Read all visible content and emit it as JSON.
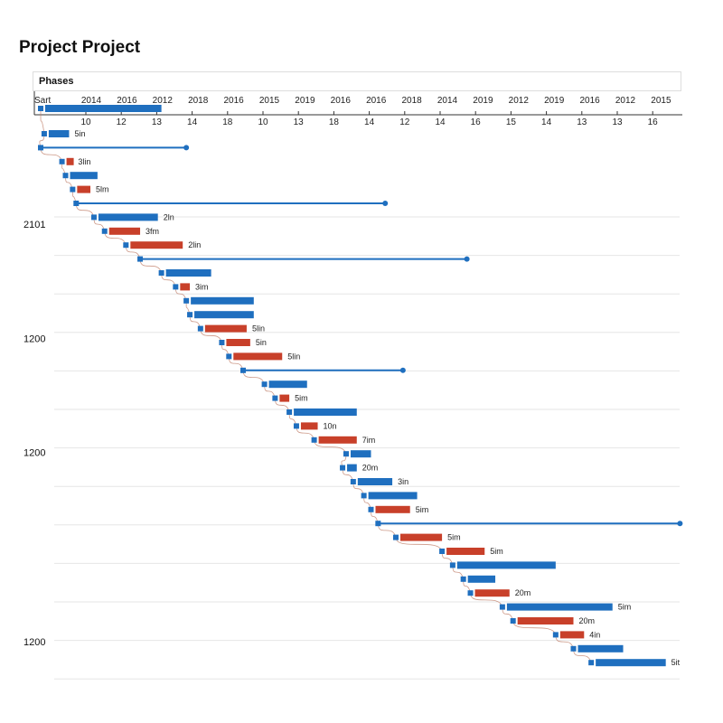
{
  "title": "Project Project",
  "header": {
    "phases_label": "Phases"
  },
  "colors": {
    "blue": "#1f6fbf",
    "red": "#c8402a",
    "connector": "#c0806a",
    "grid": "#e6e6e6"
  },
  "chart_data": {
    "type": "gantt",
    "title": "Project Project",
    "top_tick_labels": [
      "Sart",
      "2014",
      "2016",
      "2012",
      "2018",
      "2016",
      "2015",
      "2019",
      "2016",
      "2016",
      "2018",
      "2014",
      "2019",
      "2012",
      "2019",
      "2016",
      "2012",
      "2015"
    ],
    "bottom_tick_labels": [
      "10",
      "12",
      "13",
      "14",
      "18",
      "10",
      "13",
      "18",
      "14",
      "12",
      "14",
      "16",
      "15",
      "14",
      "13",
      "13",
      "16"
    ],
    "y_labels": [
      {
        "text": "2101",
        "row": 7.5
      },
      {
        "text": "1200",
        "row": 15.7
      },
      {
        "text": "1200",
        "row": 23.9
      },
      {
        "text": "1200",
        "row": 37.5
      }
    ],
    "grid": true,
    "tasks": [
      {
        "start": 0.0,
        "end": 3.4,
        "color": "blue",
        "kind": "bar",
        "label": ""
      },
      {
        "start": 0.1,
        "end": 0.8,
        "color": "blue",
        "kind": "bar",
        "label": "5in"
      },
      {
        "start": 0.0,
        "end": 4.1,
        "color": "blue",
        "kind": "line",
        "label": ""
      },
      {
        "start": 0.6,
        "end": 0.9,
        "color": "red",
        "kind": "bar",
        "label": "3lin"
      },
      {
        "start": 0.7,
        "end": 1.6,
        "color": "blue",
        "kind": "bar",
        "label": ""
      },
      {
        "start": 0.9,
        "end": 1.4,
        "color": "red",
        "kind": "bar",
        "label": "5lm"
      },
      {
        "start": 1.0,
        "end": 9.7,
        "color": "blue",
        "kind": "line",
        "label": ""
      },
      {
        "start": 1.5,
        "end": 3.3,
        "color": "blue",
        "kind": "bar",
        "label": "2ln"
      },
      {
        "start": 1.8,
        "end": 2.8,
        "color": "red",
        "kind": "bar",
        "label": "3fm"
      },
      {
        "start": 2.4,
        "end": 4.0,
        "color": "red",
        "kind": "bar",
        "label": "2lin"
      },
      {
        "start": 2.8,
        "end": 12.0,
        "color": "blue",
        "kind": "line",
        "label": ""
      },
      {
        "start": 3.4,
        "end": 4.8,
        "color": "blue",
        "kind": "bar",
        "label": ""
      },
      {
        "start": 3.8,
        "end": 4.2,
        "color": "red",
        "kind": "bar",
        "label": "3im"
      },
      {
        "start": 4.1,
        "end": 6.0,
        "color": "blue",
        "kind": "bar",
        "label": ""
      },
      {
        "start": 4.2,
        "end": 6.0,
        "color": "blue",
        "kind": "bar",
        "label": ""
      },
      {
        "start": 4.5,
        "end": 5.8,
        "color": "red",
        "kind": "bar",
        "label": "5lin"
      },
      {
        "start": 5.1,
        "end": 5.9,
        "color": "red",
        "kind": "bar",
        "label": "5in"
      },
      {
        "start": 5.3,
        "end": 6.8,
        "color": "red",
        "kind": "bar",
        "label": "5lin"
      },
      {
        "start": 5.7,
        "end": 10.2,
        "color": "blue",
        "kind": "line",
        "label": ""
      },
      {
        "start": 6.3,
        "end": 7.5,
        "color": "blue",
        "kind": "bar",
        "label": ""
      },
      {
        "start": 6.6,
        "end": 7.0,
        "color": "red",
        "kind": "bar",
        "label": "5im"
      },
      {
        "start": 7.0,
        "end": 8.9,
        "color": "blue",
        "kind": "bar",
        "label": ""
      },
      {
        "start": 7.2,
        "end": 7.8,
        "color": "red",
        "kind": "bar",
        "label": "10n"
      },
      {
        "start": 7.7,
        "end": 8.9,
        "color": "red",
        "kind": "bar",
        "label": "7im"
      },
      {
        "start": 8.6,
        "end": 9.3,
        "color": "blue",
        "kind": "bar",
        "label": ""
      },
      {
        "start": 8.5,
        "end": 8.9,
        "color": "blue",
        "kind": "bar",
        "label": "20m"
      },
      {
        "start": 8.8,
        "end": 9.9,
        "color": "blue",
        "kind": "bar",
        "label": "3in"
      },
      {
        "start": 9.1,
        "end": 10.6,
        "color": "blue",
        "kind": "bar",
        "label": ""
      },
      {
        "start": 9.3,
        "end": 10.4,
        "color": "red",
        "kind": "bar",
        "label": "5im"
      },
      {
        "start": 9.5,
        "end": 18.0,
        "color": "blue",
        "kind": "line",
        "label": ""
      },
      {
        "start": 10.0,
        "end": 11.3,
        "color": "red",
        "kind": "bar",
        "label": "5im"
      },
      {
        "start": 11.3,
        "end": 12.5,
        "color": "red",
        "kind": "bar",
        "label": "5im"
      },
      {
        "start": 11.6,
        "end": 14.5,
        "color": "blue",
        "kind": "bar",
        "label": ""
      },
      {
        "start": 11.9,
        "end": 12.8,
        "color": "blue",
        "kind": "bar",
        "label": ""
      },
      {
        "start": 12.1,
        "end": 13.2,
        "color": "red",
        "kind": "bar",
        "label": "20m"
      },
      {
        "start": 13.0,
        "end": 16.1,
        "color": "blue",
        "kind": "bar",
        "label": "5im"
      },
      {
        "start": 13.3,
        "end": 15.0,
        "color": "red",
        "kind": "bar",
        "label": "20m"
      },
      {
        "start": 14.5,
        "end": 15.3,
        "color": "red",
        "kind": "bar",
        "label": "4in"
      },
      {
        "start": 15.0,
        "end": 16.4,
        "color": "blue",
        "kind": "bar",
        "label": ""
      },
      {
        "start": 15.5,
        "end": 17.6,
        "color": "blue",
        "kind": "bar",
        "label": "5it"
      }
    ]
  }
}
